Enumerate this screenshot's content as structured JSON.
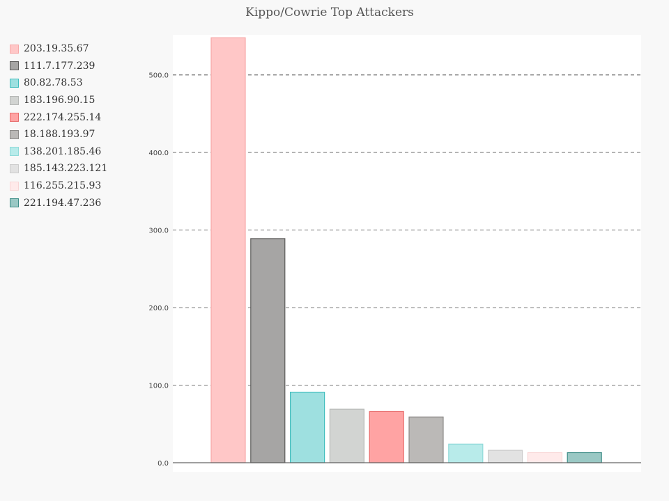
{
  "chart_data": {
    "type": "bar",
    "title": "Kippo/Cowrie Top Attackers",
    "xlabel": "",
    "ylabel": "",
    "ylim": [
      0,
      550
    ],
    "yticks": [
      "0.0",
      "100.0",
      "200.0",
      "300.0",
      "400.0",
      "500.0"
    ],
    "grid": true,
    "legend_position": "left",
    "categories": [
      "203.19.35.67",
      "111.7.177.239",
      "80.82.78.53",
      "183.196.90.15",
      "222.174.255.14",
      "18.188.193.97",
      "138.201.185.46",
      "185.143.223.121",
      "116.255.215.93",
      "221.194.47.236"
    ],
    "values": [
      548,
      289,
      91,
      69,
      66,
      59,
      24,
      16,
      13,
      13
    ],
    "colors": [
      {
        "fill": "#ffc7c7",
        "stroke": "#f7a8a8"
      },
      {
        "fill": "#a6a5a4",
        "stroke": "#5c5b5a"
      },
      {
        "fill": "#9ee0e0",
        "stroke": "#3fbdbd"
      },
      {
        "fill": "#d2d4d2",
        "stroke": "#b5b7b5"
      },
      {
        "fill": "#ffa3a3",
        "stroke": "#e86a6a"
      },
      {
        "fill": "#bbb9b7",
        "stroke": "#8c8a88"
      },
      {
        "fill": "#b8ebea",
        "stroke": "#8fdad9"
      },
      {
        "fill": "#e2e2e2",
        "stroke": "#cccccc"
      },
      {
        "fill": "#ffeaea",
        "stroke": "#f8d6d6"
      },
      {
        "fill": "#9ac8c4",
        "stroke": "#3c8c86"
      }
    ]
  }
}
